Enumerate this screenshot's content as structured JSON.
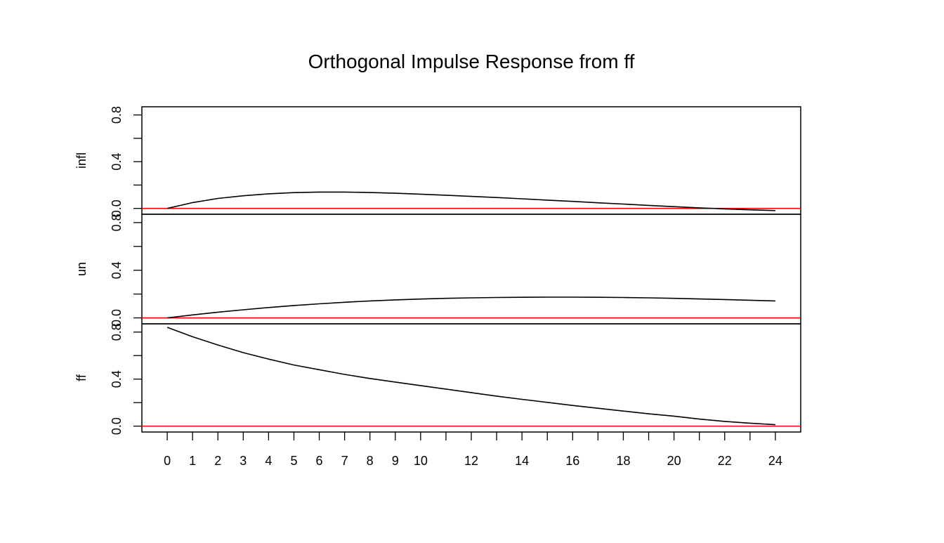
{
  "chart_data": {
    "type": "line",
    "title": "Orthogonal Impulse Response from ff",
    "x": [
      0,
      1,
      2,
      3,
      4,
      5,
      6,
      7,
      8,
      9,
      10,
      11,
      12,
      13,
      14,
      15,
      16,
      17,
      18,
      19,
      20,
      21,
      22,
      23,
      24
    ],
    "x_tick_labels": [
      "0",
      "1",
      "2",
      "3",
      "4",
      "5",
      "6",
      "7",
      "8",
      "9",
      "10",
      "12",
      "14",
      "16",
      "18",
      "20",
      "22",
      "24"
    ],
    "xlim": [
      -1,
      25
    ],
    "ylim": [
      -0.05,
      0.87
    ],
    "y_tick_labels": [
      "0.0",
      "0.4",
      "0.8"
    ],
    "grid": false,
    "reference_line": {
      "y": 0,
      "color": "#ff0000"
    },
    "series_color": "#000000",
    "series": [
      {
        "name": "infl",
        "values": [
          0.0,
          0.05,
          0.085,
          0.108,
          0.125,
          0.135,
          0.14,
          0.14,
          0.136,
          0.13,
          0.122,
          0.113,
          0.103,
          0.093,
          0.082,
          0.071,
          0.06,
          0.048,
          0.037,
          0.026,
          0.015,
          0.005,
          -0.004,
          -0.012,
          -0.019
        ]
      },
      {
        "name": "un",
        "values": [
          0.0,
          0.025,
          0.048,
          0.068,
          0.087,
          0.104,
          0.118,
          0.131,
          0.142,
          0.151,
          0.158,
          0.164,
          0.168,
          0.171,
          0.173,
          0.174,
          0.174,
          0.173,
          0.171,
          0.168,
          0.164,
          0.159,
          0.154,
          0.148,
          0.142
        ]
      },
      {
        "name": "ff",
        "values": [
          0.84,
          0.76,
          0.69,
          0.625,
          0.57,
          0.52,
          0.48,
          0.44,
          0.405,
          0.375,
          0.345,
          0.315,
          0.285,
          0.255,
          0.228,
          0.202,
          0.176,
          0.152,
          0.128,
          0.105,
          0.085,
          0.06,
          0.04,
          0.025,
          0.012
        ]
      }
    ]
  }
}
